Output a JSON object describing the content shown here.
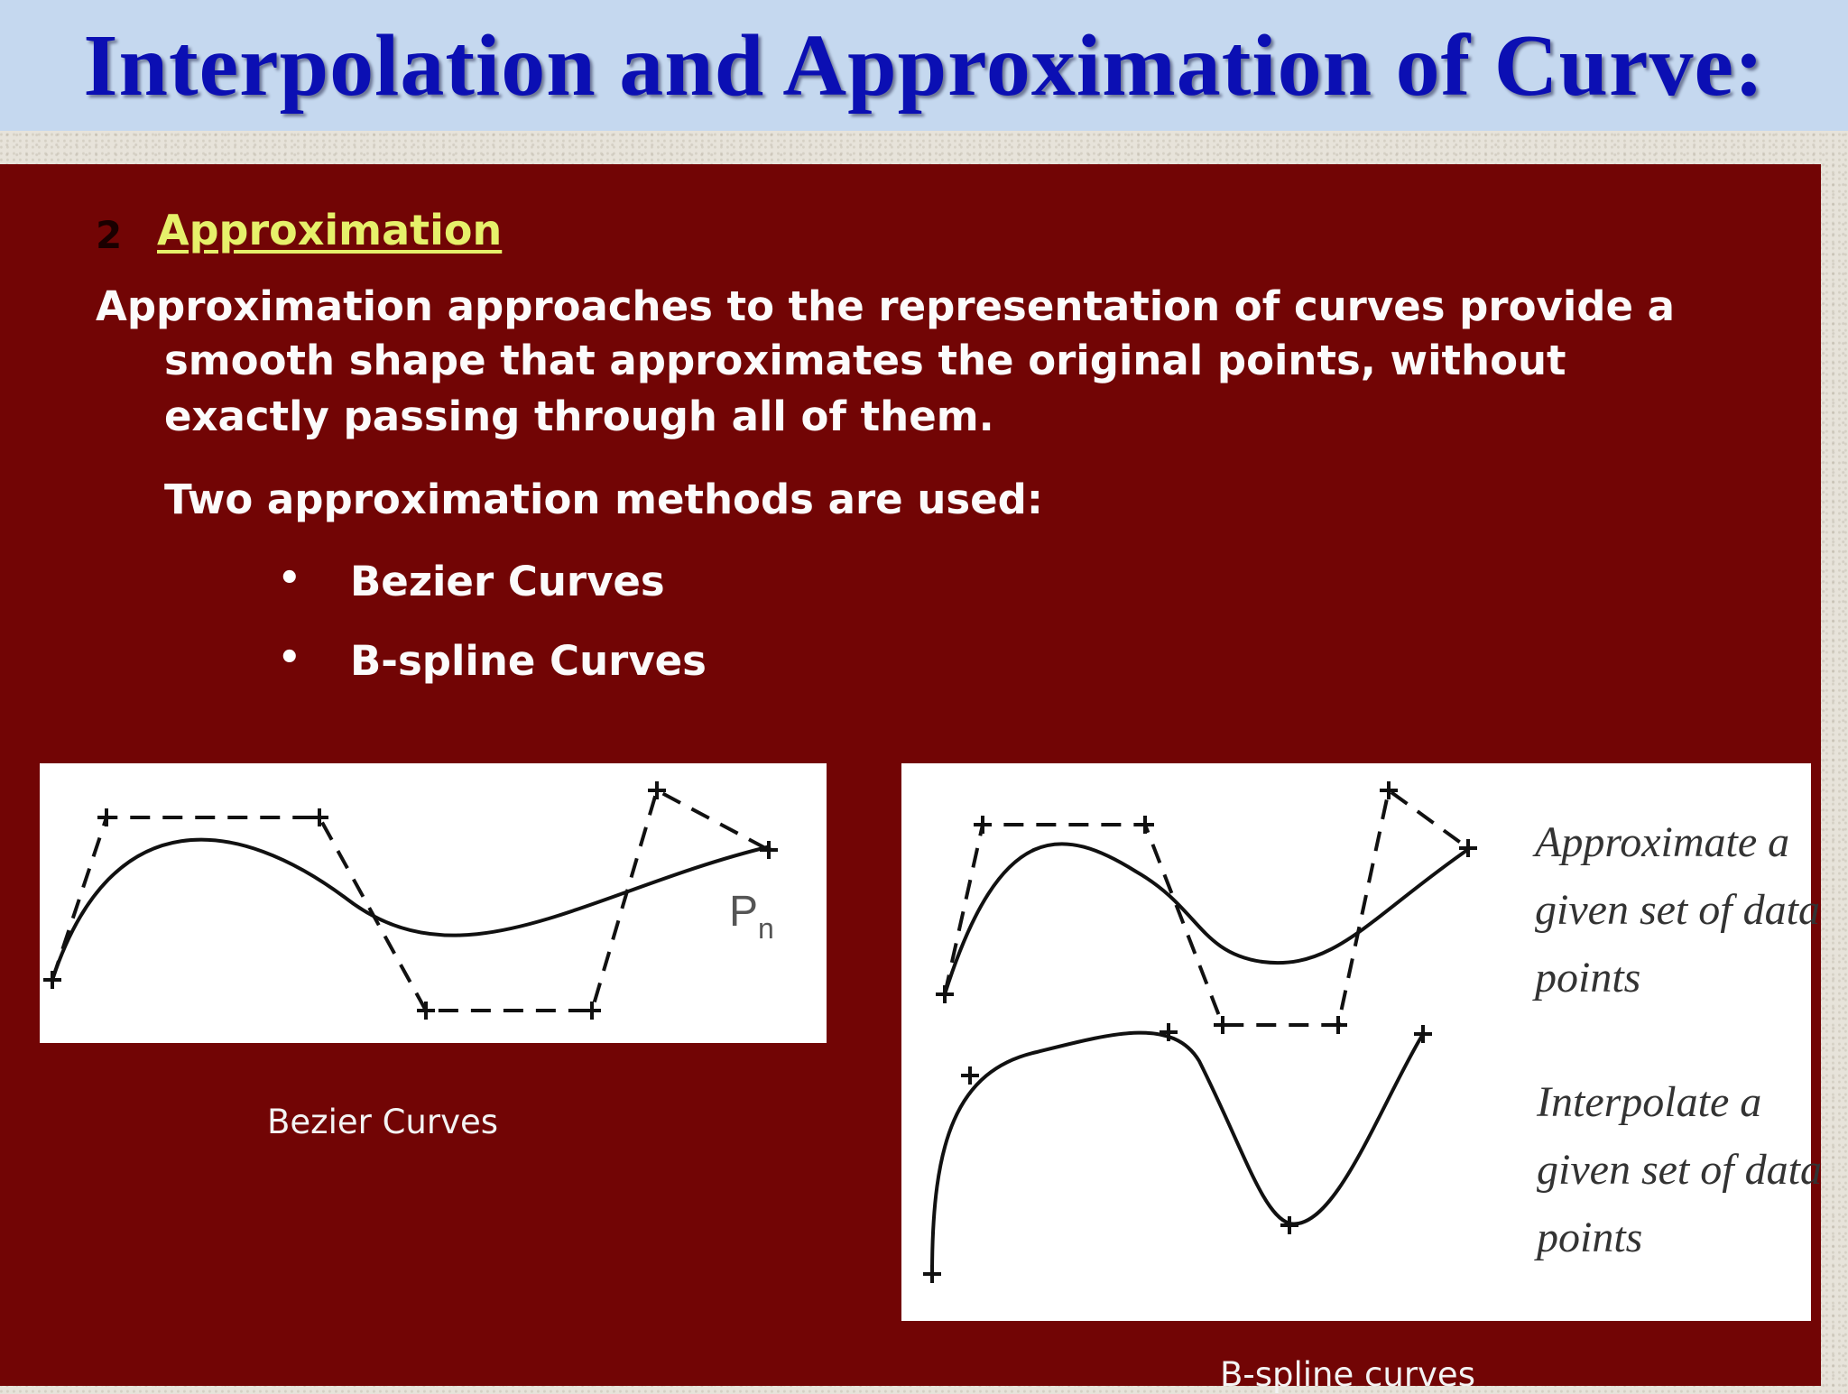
{
  "title": "Interpolation and Approximation of Curve:",
  "section": {
    "number": "2",
    "heading": "Approximation"
  },
  "paragraph": {
    "line1": "Approximation approaches to the representation of curves provide a",
    "line2": "smooth shape that approximates the original points, without",
    "line3": "exactly passing through all of them."
  },
  "methods_intro": "Two approximation methods are used:",
  "methods": [
    "Bezier Curves",
    "B-spline Curves"
  ],
  "figures": {
    "bezier": {
      "point_label": "P",
      "point_subscript": "n",
      "caption": "Bezier Curves"
    },
    "bspline": {
      "approx_note": [
        "Approximate a",
        "given set of data",
        "points"
      ],
      "interp_note": [
        "Interpolate a",
        "given set of data",
        "points"
      ],
      "caption": "B-spline curves"
    }
  },
  "colors": {
    "title": "#0b0fb3",
    "title_bar": "#c5d8ef",
    "panel": "#720505",
    "heading": "#e6f06a"
  }
}
